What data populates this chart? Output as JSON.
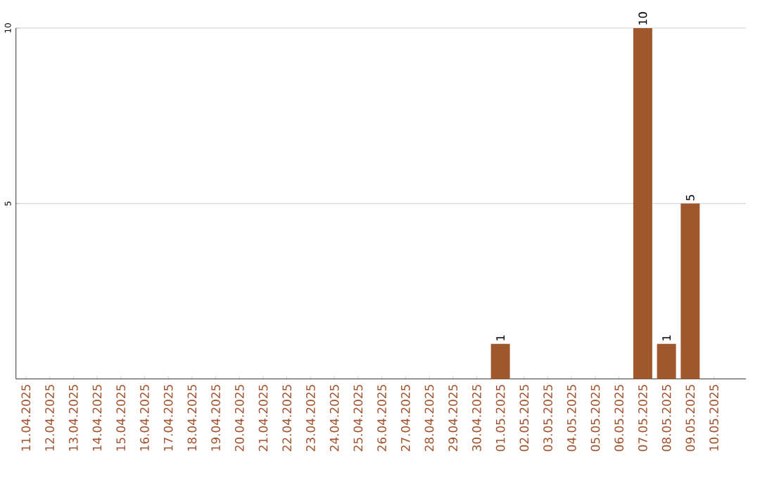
{
  "chart_data": {
    "type": "bar",
    "categories": [
      "11.04.2025",
      "12.04.2025",
      "13.04.2025",
      "14.04.2025",
      "15.04.2025",
      "16.04.2025",
      "17.04.2025",
      "18.04.2025",
      "19.04.2025",
      "20.04.2025",
      "21.04.2025",
      "22.04.2025",
      "23.04.2025",
      "24.04.2025",
      "25.04.2025",
      "26.04.2025",
      "27.04.2025",
      "28.04.2025",
      "29.04.2025",
      "30.04.2025",
      "01.05.2025",
      "02.05.2025",
      "03.05.2025",
      "04.05.2025",
      "05.05.2025",
      "06.05.2025",
      "07.05.2025",
      "08.05.2025",
      "09.05.2025",
      "10.05.2025"
    ],
    "values": [
      0,
      0,
      0,
      0,
      0,
      0,
      0,
      0,
      0,
      0,
      0,
      0,
      0,
      0,
      0,
      0,
      0,
      0,
      0,
      0,
      1,
      0,
      0,
      0,
      0,
      0,
      10,
      1,
      5,
      0
    ],
    "value_labels": [
      null,
      null,
      null,
      null,
      null,
      null,
      null,
      null,
      null,
      null,
      null,
      null,
      null,
      null,
      null,
      null,
      null,
      null,
      null,
      null,
      "1",
      null,
      null,
      null,
      null,
      null,
      "10",
      "1",
      "5",
      null
    ],
    "color": "#a0572b",
    "ylim": [
      0,
      10
    ],
    "yticks": [
      5,
      10
    ],
    "grid": "y"
  }
}
